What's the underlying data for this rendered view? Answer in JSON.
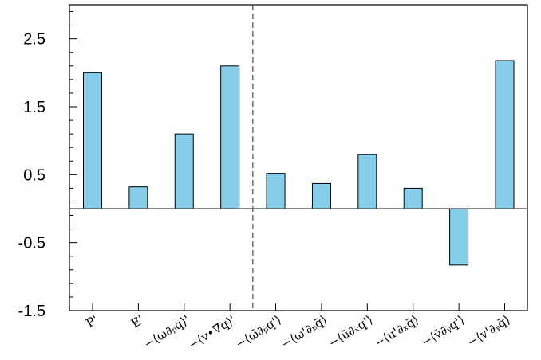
{
  "chart_data": {
    "type": "bar",
    "categories": [
      "P'",
      "E'",
      "−⟨ω∂ₚq⟩'",
      "−⟨v•∇q⟩'",
      "−⟨ω̄∂ₚq'⟩",
      "−⟨ω'∂ₚq̄⟩",
      "−⟨ū∂ₓq'⟩",
      "−⟨u'∂ₓq̄⟩",
      "−⟨v̄∂ᵧq'⟩",
      "−⟨v'∂ᵧq̄⟩"
    ],
    "values": [
      2.0,
      0.32,
      1.1,
      2.1,
      0.52,
      0.37,
      0.8,
      0.3,
      -0.83,
      2.18
    ],
    "ylim": [
      -1.5,
      3.0
    ],
    "yticks_major": [
      -1.5,
      -0.5,
      0.5,
      1.5,
      2.5
    ],
    "ytick_labels": [
      "-1.5",
      "-0.5",
      "0.5",
      "1.5",
      "2.5"
    ],
    "xlabel": "",
    "ylabel": "",
    "title": "",
    "grid": false,
    "zero_line": true,
    "divider_after_category": 3,
    "colors": {
      "bar_fill": "#87ceeb",
      "bar_stroke": "#000000",
      "axis": "#000000",
      "zero_line": "#444444",
      "divider": "#555555"
    }
  }
}
